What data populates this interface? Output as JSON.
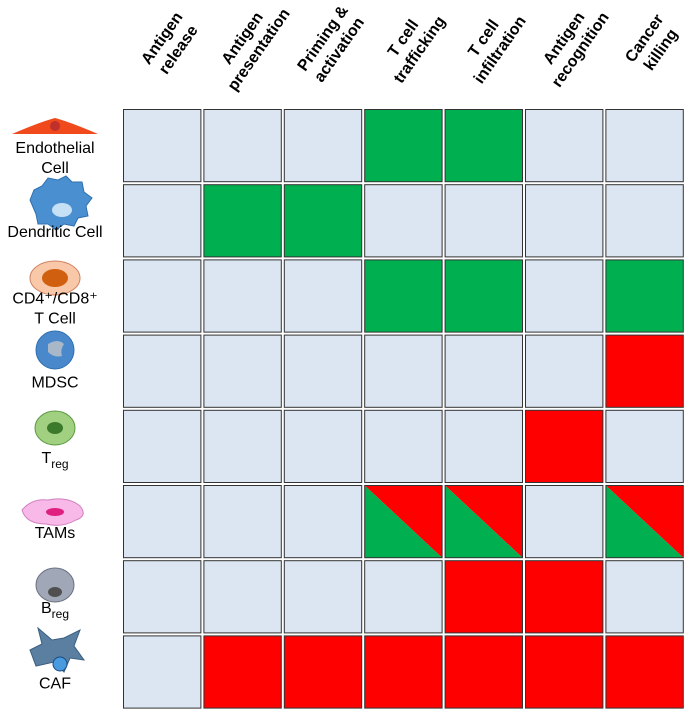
{
  "columns": [
    [
      "Antigen",
      "release"
    ],
    [
      "Antigen",
      "presentation"
    ],
    [
      "Priming &",
      "activation"
    ],
    [
      "T cell",
      "trafficking"
    ],
    [
      "T cell",
      "infiltration"
    ],
    [
      "Antigen",
      "recognition"
    ],
    [
      "Cancer",
      "killing"
    ]
  ],
  "rows": [
    {
      "label": [
        {
          "text": "Endothelial"
        },
        {
          "text": "Cell"
        }
      ]
    },
    {
      "label": [
        {
          "text": "Dendritic Cell"
        }
      ]
    },
    {
      "label": [
        {
          "text": "CD4⁺/CD8⁺"
        },
        {
          "text": "T Cell"
        }
      ]
    },
    {
      "label": [
        {
          "text": "MDSC"
        }
      ]
    },
    {
      "label": [
        {
          "text": "T",
          "sub": "reg"
        }
      ]
    },
    {
      "label": [
        {
          "text": "TAMs"
        }
      ]
    },
    {
      "label": [
        {
          "text": "B",
          "sub": "reg"
        }
      ]
    },
    {
      "label": [
        {
          "text": "CAF"
        }
      ]
    }
  ],
  "cells": [
    [
      [
        "#dce6f2"
      ],
      [
        "#dce6f2"
      ],
      [
        "#dce6f2"
      ],
      [
        "#00b050"
      ],
      [
        "#00b050"
      ],
      [
        "#dce6f2"
      ],
      [
        "#dce6f2"
      ]
    ],
    [
      [
        "#dce6f2"
      ],
      [
        "#00b050"
      ],
      [
        "#00b050"
      ],
      [
        "#dce6f2"
      ],
      [
        "#dce6f2"
      ],
      [
        "#dce6f2"
      ],
      [
        "#dce6f2"
      ]
    ],
    [
      [
        "#dce6f2"
      ],
      [
        "#dce6f2"
      ],
      [
        "#dce6f2"
      ],
      [
        "#00b050"
      ],
      [
        "#00b050"
      ],
      [
        "#dce6f2"
      ],
      [
        "#00b050"
      ]
    ],
    [
      [
        "#dce6f2"
      ],
      [
        "#dce6f2"
      ],
      [
        "#dce6f2"
      ],
      [
        "#dce6f2"
      ],
      [
        "#dce6f2"
      ],
      [
        "#dce6f2"
      ],
      [
        "#ff0000"
      ]
    ],
    [
      [
        "#dce6f2"
      ],
      [
        "#dce6f2"
      ],
      [
        "#dce6f2"
      ],
      [
        "#dce6f2"
      ],
      [
        "#dce6f2"
      ],
      [
        "#ff0000"
      ],
      [
        "#dce6f2"
      ]
    ],
    [
      [
        "#dce6f2"
      ],
      [
        "#dce6f2"
      ],
      [
        "#dce6f2"
      ],
      [
        "#ff0000",
        "#00b050"
      ],
      [
        "#ff0000",
        "#00b050"
      ],
      [
        "#dce6f2"
      ],
      [
        "#ff0000",
        "#00b050"
      ]
    ],
    [
      [
        "#dce6f2"
      ],
      [
        "#dce6f2"
      ],
      [
        "#dce6f2"
      ],
      [
        "#dce6f2"
      ],
      [
        "#ff0000"
      ],
      [
        "#ff0000"
      ],
      [
        "#dce6f2"
      ]
    ],
    [
      [
        "#dce6f2"
      ],
      [
        "#ff0000"
      ],
      [
        "#ff0000"
      ],
      [
        "#ff0000"
      ],
      [
        "#ff0000"
      ],
      [
        "#ff0000"
      ],
      [
        "#ff0000"
      ]
    ]
  ]
}
